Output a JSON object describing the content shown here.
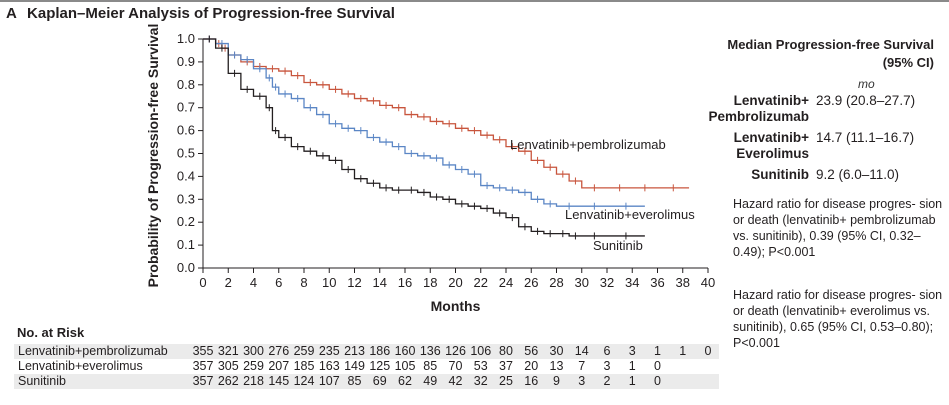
{
  "panel": {
    "letter": "A",
    "title": "Kaplan–Meier Analysis of Progression-free Survival"
  },
  "chart_data": {
    "type": "line",
    "xlabel": "Months",
    "ylabel": "Probability of Progression-free Survival",
    "xlim": [
      0,
      40
    ],
    "ylim": [
      0,
      1.0
    ],
    "x_ticks": [
      "0",
      "2",
      "4",
      "6",
      "8",
      "10",
      "12",
      "14",
      "16",
      "18",
      "20",
      "22",
      "24",
      "26",
      "28",
      "30",
      "32",
      "34",
      "36",
      "38",
      "40"
    ],
    "y_ticks": [
      "0.0",
      "0.1",
      "0.2",
      "0.3",
      "0.4",
      "0.5",
      "0.6",
      "0.7",
      "0.8",
      "0.9",
      "1.0"
    ],
    "grid": false,
    "series": [
      {
        "name": "Lenvatinib+pembrolizumab",
        "color": "#c8553d",
        "x": [
          0,
          1,
          1.5,
          2,
          3,
          4,
          5,
          6,
          7,
          8,
          9,
          10,
          11,
          12,
          13,
          14,
          15,
          16,
          17,
          18,
          19,
          20,
          21,
          22,
          23,
          24,
          25,
          26,
          27,
          28,
          29,
          30,
          32,
          34,
          36,
          38.5
        ],
        "y": [
          1.0,
          0.98,
          0.96,
          0.93,
          0.9,
          0.88,
          0.87,
          0.86,
          0.84,
          0.81,
          0.8,
          0.78,
          0.76,
          0.74,
          0.73,
          0.71,
          0.7,
          0.67,
          0.66,
          0.64,
          0.63,
          0.61,
          0.6,
          0.58,
          0.56,
          0.53,
          0.51,
          0.47,
          0.44,
          0.41,
          0.38,
          0.35,
          0.35,
          0.35,
          0.35,
          0.35
        ]
      },
      {
        "name": "Lenvatinib+everolimus",
        "color": "#5b86c5",
        "x": [
          0,
          1,
          2,
          3,
          4,
          5,
          5.5,
          6,
          7,
          8,
          9,
          10,
          11,
          12,
          13,
          14,
          15,
          16,
          17,
          18,
          19,
          20,
          21,
          22,
          23,
          24,
          25,
          26,
          27,
          28,
          30,
          32,
          35
        ],
        "y": [
          1.0,
          0.98,
          0.93,
          0.91,
          0.87,
          0.83,
          0.79,
          0.76,
          0.74,
          0.7,
          0.67,
          0.63,
          0.61,
          0.6,
          0.57,
          0.55,
          0.53,
          0.5,
          0.49,
          0.48,
          0.45,
          0.43,
          0.41,
          0.36,
          0.35,
          0.34,
          0.33,
          0.3,
          0.28,
          0.27,
          0.27,
          0.27,
          0.27
        ]
      },
      {
        "name": "Sunitinib",
        "color": "#231f20",
        "x": [
          0,
          1,
          2,
          3,
          4,
          5,
          5.5,
          6,
          7,
          8,
          9,
          10,
          11,
          12,
          13,
          14,
          15,
          16,
          17,
          18,
          19,
          20,
          21,
          22,
          23,
          24,
          25,
          26,
          27,
          28,
          29,
          30,
          32,
          35
        ],
        "y": [
          1.0,
          0.96,
          0.85,
          0.78,
          0.75,
          0.7,
          0.6,
          0.57,
          0.53,
          0.51,
          0.49,
          0.47,
          0.43,
          0.39,
          0.37,
          0.35,
          0.34,
          0.34,
          0.33,
          0.31,
          0.3,
          0.28,
          0.27,
          0.26,
          0.24,
          0.22,
          0.18,
          0.16,
          0.15,
          0.15,
          0.14,
          0.14,
          0.14,
          0.14
        ]
      }
    ],
    "annotations": [
      "Lenvatinib+pembrolizumab",
      "Lenvatinib+everolimus",
      "Sunitinib"
    ]
  },
  "medians": {
    "title": "Median Progression-free Survival (95% CI)",
    "unit": "mo",
    "rows": [
      {
        "label": "Lenvatinib+ Pembrolizumab",
        "value": "23.9 (20.8–27.7)"
      },
      {
        "label": "Lenvatinib+ Everolimus",
        "value": "14.7 (11.1–16.7)"
      },
      {
        "label": "Sunitinib",
        "value": "9.2 (6.0–11.0)"
      }
    ]
  },
  "hazard_notes": [
    "Hazard ratio for disease progres- sion or death (lenvatinib+ pembrolizumab vs. sunitinib), 0.39 (95% CI, 0.32–0.49); P<0.001",
    "Hazard ratio for disease progres- sion or death (lenvatinib+ everolimus vs. sunitinib), 0.65 (95% CI, 0.53–0.80); P<0.001"
  ],
  "risk": {
    "title": "No. at Risk",
    "rows": [
      {
        "label": "Lenvatinib+pembrolizumab",
        "values": [
          "355",
          "321",
          "300",
          "276",
          "259",
          "235",
          "213",
          "186",
          "160",
          "136",
          "126",
          "106",
          "80",
          "56",
          "30",
          "14",
          "6",
          "3",
          "1",
          "1",
          "0"
        ]
      },
      {
        "label": "Lenvatinib+everolimus",
        "values": [
          "357",
          "305",
          "259",
          "207",
          "185",
          "163",
          "149",
          "125",
          "105",
          "85",
          "70",
          "53",
          "37",
          "20",
          "13",
          "7",
          "3",
          "1",
          "0"
        ]
      },
      {
        "label": "Sunitinib",
        "values": [
          "357",
          "262",
          "218",
          "145",
          "124",
          "107",
          "85",
          "69",
          "62",
          "49",
          "42",
          "32",
          "25",
          "16",
          "9",
          "3",
          "2",
          "1",
          "0"
        ]
      }
    ]
  }
}
